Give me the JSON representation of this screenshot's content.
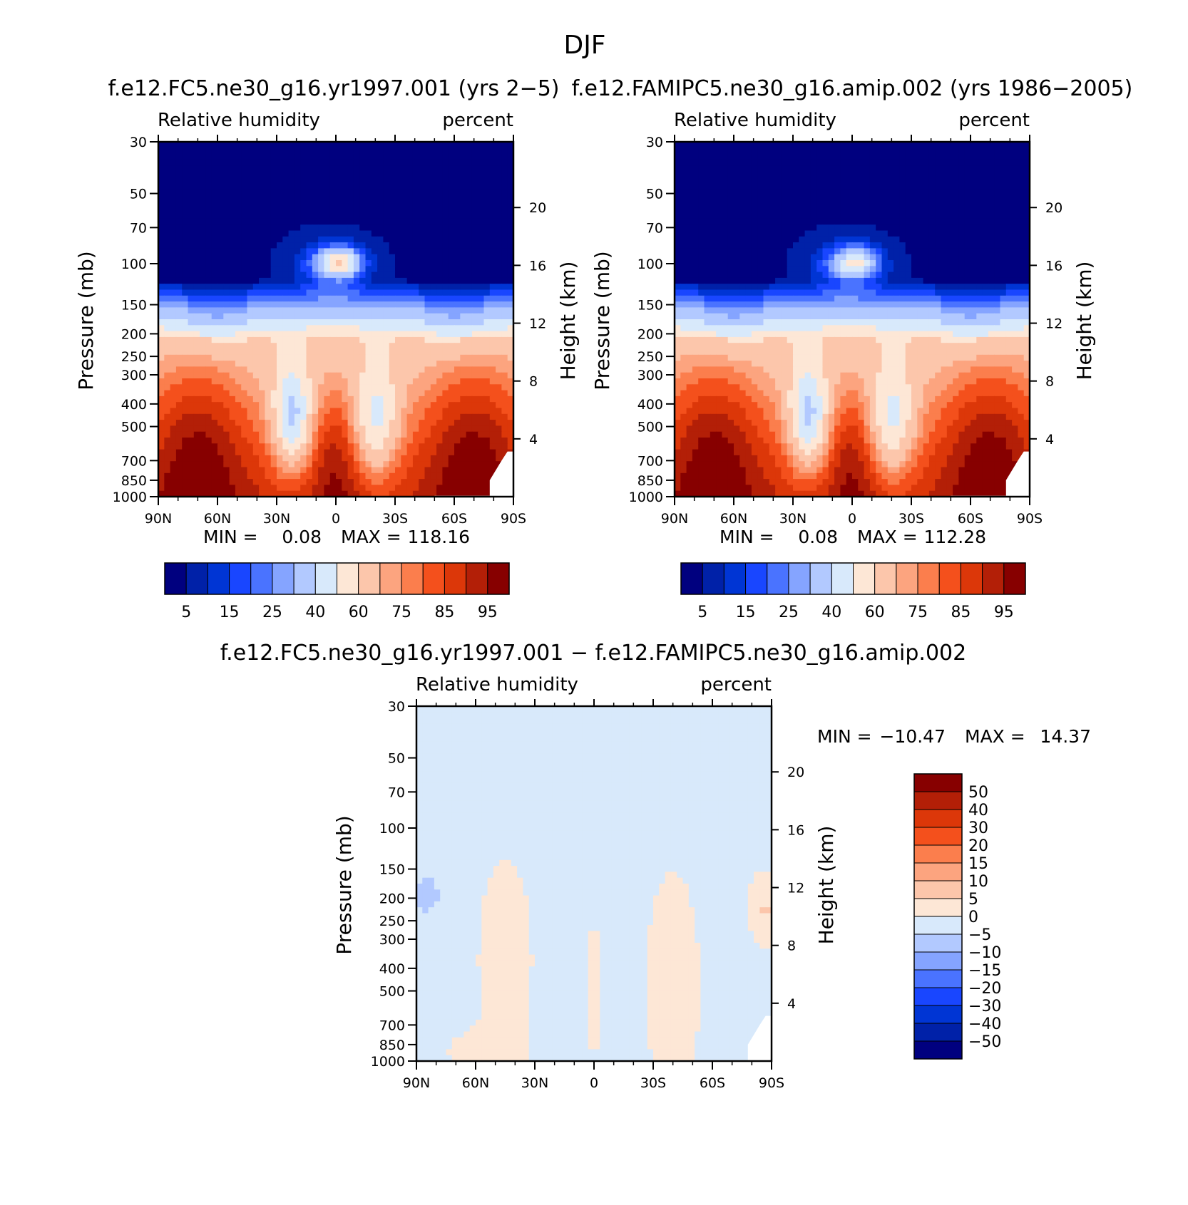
{
  "figure": {
    "title": "DJF"
  },
  "palettes": {
    "abs": [
      "#00007f",
      "#0021a8",
      "#0035d4",
      "#1946ff",
      "#4a73ff",
      "#85a4ff",
      "#b2c9ff",
      "#d8e9fb",
      "#fde7d6",
      "#fcc6ab",
      "#fca47f",
      "#fb7e4d",
      "#f4501c",
      "#dc3709",
      "#b31f07",
      "#870000"
    ],
    "diff": [
      "#870000",
      "#b31f07",
      "#dc3709",
      "#f4501c",
      "#fb7e4d",
      "#fca47f",
      "#fcc6ab",
      "#fde7d6",
      "#d8e9fb",
      "#b2c9ff",
      "#85a4ff",
      "#4a73ff",
      "#1946ff",
      "#0035d4",
      "#0021a8",
      "#00007f"
    ]
  },
  "chart_data": [
    {
      "id": "panel1",
      "type": "heatmap",
      "title": "f.e12.FC5.ne30_g16.yr1997.001 (yrs 2−5)",
      "left_label": "Relative humidity",
      "right_label": "percent",
      "ylabel": "Pressure (mb)",
      "y2label": "Height (km)",
      "x_ticks": [
        "90N",
        "60N",
        "30N",
        "0",
        "30S",
        "60S",
        "90S"
      ],
      "y_ticks": [
        "30",
        "50",
        "70",
        "100",
        "150",
        "200",
        "250",
        "300",
        "400",
        "500",
        "700",
        "850",
        "1000"
      ],
      "y2_ticks": [
        "20",
        "16",
        "12",
        "8",
        "4"
      ],
      "ylim": [
        1000,
        30
      ],
      "xlim": [
        90,
        -90
      ],
      "min_label": "MIN =",
      "min_value": "0.08",
      "max_label": "MAX =",
      "max_value": "118.16",
      "colorbar_labels": [
        "5",
        "15",
        "25",
        "40",
        "60",
        "75",
        "85",
        "95"
      ],
      "field": "abs",
      "peak": 118.16
    },
    {
      "id": "panel2",
      "type": "heatmap",
      "title": "f.e12.FAMIPC5.ne30_g16.amip.002 (yrs 1986−2005)",
      "left_label": "Relative humidity",
      "right_label": "percent",
      "ylabel": "Pressure (mb)",
      "y2label": "Height (km)",
      "x_ticks": [
        "90N",
        "60N",
        "30N",
        "0",
        "30S",
        "60S",
        "90S"
      ],
      "y_ticks": [
        "30",
        "50",
        "70",
        "100",
        "150",
        "200",
        "250",
        "300",
        "400",
        "500",
        "700",
        "850",
        "1000"
      ],
      "y2_ticks": [
        "20",
        "16",
        "12",
        "8",
        "4"
      ],
      "ylim": [
        1000,
        30
      ],
      "xlim": [
        90,
        -90
      ],
      "min_label": "MIN =",
      "min_value": "0.08",
      "max_label": "MAX =",
      "max_value": "112.28",
      "colorbar_labels": [
        "5",
        "15",
        "25",
        "40",
        "60",
        "75",
        "85",
        "95"
      ],
      "field": "abs",
      "peak": 112.28
    },
    {
      "id": "panel3",
      "type": "heatmap",
      "title": "f.e12.FC5.ne30_g16.yr1997.001 − f.e12.FAMIPC5.ne30_g16.amip.002",
      "left_label": "Relative humidity",
      "right_label": "percent",
      "ylabel": "Pressure (mb)",
      "y2label": "Height (km)",
      "x_ticks": [
        "90N",
        "60N",
        "30N",
        "0",
        "30S",
        "60S",
        "90S"
      ],
      "y_ticks": [
        "30",
        "50",
        "70",
        "100",
        "150",
        "200",
        "250",
        "300",
        "400",
        "500",
        "700",
        "850",
        "1000"
      ],
      "y2_ticks": [
        "20",
        "16",
        "12",
        "8",
        "4"
      ],
      "ylim": [
        1000,
        30
      ],
      "xlim": [
        90,
        -90
      ],
      "min_label": "MIN =",
      "min_value": "−10.47",
      "max_label": "MAX =",
      "max_value": "14.37",
      "colorbar_labels": [
        "50",
        "40",
        "30",
        "20",
        "15",
        "10",
        "5",
        "0",
        "−5",
        "−10",
        "−15",
        "−20",
        "−30",
        "−40",
        "−50"
      ],
      "field": "diff"
    }
  ]
}
